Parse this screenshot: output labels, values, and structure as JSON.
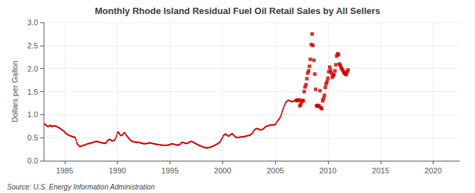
{
  "chart_data": {
    "type": "line",
    "title": "Monthly Rhode Island Residual Fuel Oil Retail Sales by All Sellers",
    "ylabel": "Dollars per Gallon",
    "annotation": "Source: U.S. Energy Information Administration",
    "xlim": [
      1983.0,
      2022.5
    ],
    "xticks": [
      1985,
      1990,
      1995,
      2000,
      2005,
      2010,
      2015,
      2020
    ],
    "ylim": [
      0.0,
      3.0
    ],
    "yticks": [
      {
        "value": 0.0,
        "label": "0.0"
      },
      0.5,
      {
        "value": 1.0,
        "label": "1.0"
      },
      1.5,
      {
        "value": 2.0,
        "label": "2.0"
      },
      2.5,
      {
        "value": 3.0,
        "label": "3.0"
      }
    ],
    "grid": true,
    "series": [
      {
        "type": "line",
        "color": "#cc0000",
        "marker": "square",
        "line_style": "solid",
        "x": [
          1983.08,
          1983.17,
          1983.25,
          1983.33,
          1983.42,
          1983.5,
          1983.58,
          1983.67,
          1983.75,
          1983.83,
          1983.92,
          1984.0,
          1984.08,
          1984.17,
          1984.25,
          1984.33,
          1984.42,
          1984.5,
          1984.58,
          1984.67,
          1984.75,
          1984.83,
          1984.92,
          1985.0,
          1985.08,
          1985.17,
          1985.25,
          1985.33,
          1985.42,
          1985.5,
          1985.58,
          1985.67,
          1985.75,
          1985.83,
          1985.92,
          1986.0,
          1986.08,
          1986.17,
          1986.25,
          1986.33,
          1986.42,
          1986.5,
          1986.58,
          1986.67,
          1986.75,
          1986.83,
          1986.92,
          1987.0,
          1987.08,
          1987.17,
          1987.25,
          1987.33,
          1987.42,
          1987.5,
          1987.58,
          1987.67,
          1987.75,
          1987.83,
          1987.92,
          1988.0,
          1988.08,
          1988.17,
          1988.25,
          1988.33,
          1988.42,
          1988.5,
          1988.58,
          1988.67,
          1988.75,
          1988.83,
          1988.92,
          1989.0,
          1989.08,
          1989.17,
          1989.25,
          1989.33,
          1989.42,
          1989.5,
          1989.58,
          1989.67,
          1989.75,
          1989.83,
          1989.92,
          1990.0,
          1990.08,
          1990.17,
          1990.25,
          1990.33,
          1990.42,
          1990.5,
          1990.58,
          1990.67,
          1990.75,
          1990.83,
          1990.92,
          1991.0,
          1991.08,
          1991.17,
          1991.25,
          1991.33,
          1991.42,
          1991.5,
          1991.58,
          1991.67,
          1991.75,
          1991.83,
          1991.92,
          1992.0,
          1992.08,
          1992.17,
          1992.25,
          1992.33,
          1992.42,
          1992.5,
          1992.58,
          1992.67,
          1992.75,
          1992.83,
          1992.92,
          1993.0,
          1993.08,
          1993.17,
          1993.25,
          1993.33,
          1993.42,
          1993.5,
          1993.58,
          1993.67,
          1993.75,
          1993.83,
          1993.92,
          1994.0,
          1994.08,
          1994.17,
          1994.25,
          1994.33,
          1994.42,
          1994.5,
          1994.58,
          1994.67,
          1994.75,
          1994.83,
          1994.92,
          1995.0,
          1995.08,
          1995.17,
          1995.25,
          1995.33,
          1995.42,
          1995.5,
          1995.58,
          1995.67,
          1995.75,
          1995.83,
          1995.92,
          1996.0,
          1996.08,
          1996.17,
          1996.25,
          1996.33,
          1996.42,
          1996.5,
          1996.58,
          1996.67,
          1996.75,
          1996.83,
          1996.92,
          1997.0,
          1997.08,
          1997.17,
          1997.25,
          1997.33,
          1997.42,
          1997.5,
          1997.58,
          1997.67,
          1997.75,
          1997.83,
          1997.92,
          1998.0,
          1998.08,
          1998.17,
          1998.25,
          1998.33,
          1998.42,
          1998.5,
          1998.58,
          1998.67,
          1998.75,
          1998.83,
          1998.92,
          1999.0,
          1999.08,
          1999.17,
          1999.25,
          1999.33,
          1999.42,
          1999.5,
          1999.58,
          1999.67,
          1999.75,
          1999.83,
          1999.92,
          2000.0,
          2000.08,
          2000.17,
          2000.25,
          2000.33,
          2000.42,
          2000.5,
          2000.58,
          2000.67,
          2000.75,
          2000.83,
          2000.92,
          2001.0,
          2001.08,
          2001.17,
          2001.25,
          2001.33,
          2001.42,
          2001.5,
          2001.58,
          2001.67,
          2001.75,
          2001.83,
          2001.92,
          2002.0,
          2002.08,
          2002.17,
          2002.25,
          2002.33,
          2002.42,
          2002.5,
          2002.58,
          2002.67,
          2002.75,
          2002.83,
          2002.92,
          2003.0,
          2003.08,
          2003.17,
          2003.25,
          2003.33,
          2003.42,
          2003.5,
          2003.58,
          2003.67,
          2003.75,
          2003.83,
          2003.92,
          2004.0,
          2004.08,
          2004.17,
          2004.25,
          2004.33,
          2004.42,
          2004.5,
          2004.58,
          2004.67,
          2004.75,
          2004.83,
          2004.92,
          2005.0,
          2005.08,
          2005.17,
          2005.25,
          2005.33,
          2005.42,
          2005.5,
          2005.58,
          2005.67,
          2005.75,
          2005.83,
          2005.92,
          2006.0,
          2006.08,
          2006.17,
          2006.25,
          2006.33,
          2006.42,
          2006.5,
          2006.58,
          2006.67,
          2006.75,
          2006.83,
          2006.92,
          2007.0,
          2007.08
        ],
        "values": [
          0.795,
          0.785,
          0.765,
          0.755,
          0.74,
          0.75,
          0.77,
          0.755,
          0.74,
          0.755,
          0.75,
          0.755,
          0.755,
          0.75,
          0.74,
          0.73,
          0.72,
          0.71,
          0.695,
          0.68,
          0.665,
          0.655,
          0.64,
          0.62,
          0.6,
          0.585,
          0.575,
          0.56,
          0.55,
          0.54,
          0.535,
          0.53,
          0.52,
          0.515,
          0.51,
          0.505,
          0.45,
          0.38,
          0.35,
          0.33,
          0.31,
          0.305,
          0.32,
          0.325,
          0.33,
          0.335,
          0.34,
          0.35,
          0.36,
          0.365,
          0.37,
          0.375,
          0.38,
          0.385,
          0.39,
          0.395,
          0.4,
          0.41,
          0.415,
          0.42,
          0.415,
          0.41,
          0.405,
          0.4,
          0.395,
          0.39,
          0.385,
          0.38,
          0.375,
          0.38,
          0.385,
          0.41,
          0.44,
          0.455,
          0.46,
          0.455,
          0.445,
          0.43,
          0.43,
          0.44,
          0.45,
          0.48,
          0.535,
          0.6,
          0.625,
          0.595,
          0.565,
          0.545,
          0.55,
          0.565,
          0.59,
          0.61,
          0.59,
          0.56,
          0.535,
          0.51,
          0.49,
          0.465,
          0.445,
          0.43,
          0.42,
          0.415,
          0.41,
          0.405,
          0.4,
          0.4,
          0.4,
          0.4,
          0.395,
          0.39,
          0.385,
          0.38,
          0.375,
          0.37,
          0.37,
          0.37,
          0.37,
          0.375,
          0.38,
          0.385,
          0.39,
          0.385,
          0.38,
          0.375,
          0.37,
          0.365,
          0.36,
          0.36,
          0.355,
          0.35,
          0.35,
          0.35,
          0.345,
          0.34,
          0.335,
          0.335,
          0.335,
          0.335,
          0.335,
          0.335,
          0.335,
          0.34,
          0.345,
          0.35,
          0.36,
          0.365,
          0.365,
          0.36,
          0.355,
          0.35,
          0.345,
          0.34,
          0.34,
          0.345,
          0.35,
          0.365,
          0.39,
          0.4,
          0.395,
          0.39,
          0.38,
          0.375,
          0.375,
          0.38,
          0.39,
          0.4,
          0.41,
          0.42,
          0.415,
          0.405,
          0.395,
          0.385,
          0.375,
          0.365,
          0.355,
          0.345,
          0.335,
          0.325,
          0.32,
          0.315,
          0.305,
          0.295,
          0.29,
          0.285,
          0.28,
          0.28,
          0.28,
          0.285,
          0.29,
          0.295,
          0.3,
          0.305,
          0.315,
          0.325,
          0.335,
          0.345,
          0.355,
          0.365,
          0.375,
          0.39,
          0.41,
          0.44,
          0.47,
          0.505,
          0.545,
          0.565,
          0.575,
          0.57,
          0.555,
          0.54,
          0.535,
          0.545,
          0.565,
          0.58,
          0.585,
          0.57,
          0.545,
          0.525,
          0.51,
          0.505,
          0.505,
          0.505,
          0.505,
          0.51,
          0.515,
          0.52,
          0.52,
          0.52,
          0.525,
          0.53,
          0.535,
          0.54,
          0.545,
          0.55,
          0.555,
          0.565,
          0.58,
          0.6,
          0.625,
          0.655,
          0.68,
          0.695,
          0.7,
          0.695,
          0.685,
          0.675,
          0.67,
          0.67,
          0.675,
          0.685,
          0.7,
          0.72,
          0.735,
          0.745,
          0.755,
          0.76,
          0.765,
          0.77,
          0.775,
          0.775,
          0.775,
          0.775,
          0.78,
          0.79,
          0.815,
          0.845,
          0.87,
          0.895,
          0.92,
          0.955,
          1.005,
          1.065,
          1.125,
          1.18,
          1.225,
          1.26,
          1.285,
          1.3,
          1.31,
          1.31,
          1.3,
          1.285,
          1.28,
          1.285,
          1.295,
          1.305,
          1.31,
          1.31,
          1.305
        ]
      },
      {
        "type": "scatter",
        "color": "#cc0000",
        "marker": "square",
        "x": [
          2007.0,
          2007.08,
          2007.17,
          2007.25,
          2007.33,
          2007.42,
          2007.5,
          2007.58,
          2007.67,
          2007.75,
          2007.83,
          2007.92,
          2008.0,
          2008.08,
          2008.17,
          2008.25,
          2008.33,
          2008.42,
          2008.5,
          2008.58,
          2008.67,
          2008.75,
          2008.83,
          2008.92,
          2009.0,
          2009.08,
          2009.17,
          2009.25,
          2009.33,
          2009.42,
          2009.5,
          2009.58,
          2009.67,
          2009.75,
          2009.83,
          2009.92,
          2010.0,
          2010.08,
          2010.17,
          2010.25,
          2010.33,
          2010.42,
          2010.5,
          2010.58,
          2010.67,
          2010.75,
          2010.83,
          2010.92,
          2011.0,
          2011.08,
          2011.17,
          2011.25,
          2011.33,
          2011.42,
          2011.5,
          2011.58,
          2011.67,
          2011.75,
          2011.83,
          2011.92
        ],
        "values": [
          1.31,
          1.305,
          1.315,
          1.32,
          1.19,
          1.22,
          1.28,
          1.31,
          1.3,
          1.5,
          1.6,
          1.65,
          1.78,
          1.9,
          1.95,
          2.05,
          2.2,
          2.52,
          2.75,
          2.5,
          2.18,
          1.88,
          1.55,
          1.19,
          1.2,
          1.18,
          1.19,
          1.52,
          1.15,
          1.13,
          1.3,
          1.35,
          1.42,
          1.59,
          1.67,
          1.72,
          1.79,
          1.93,
          2.03,
          1.96,
          1.9,
          1.81,
          1.85,
          1.87,
          1.95,
          2.08,
          2.27,
          2.32,
          2.3,
          2.1,
          2.07,
          2.02,
          1.99,
          1.96,
          1.92,
          1.9,
          1.88,
          1.87,
          1.93,
          1.97
        ]
      }
    ]
  }
}
